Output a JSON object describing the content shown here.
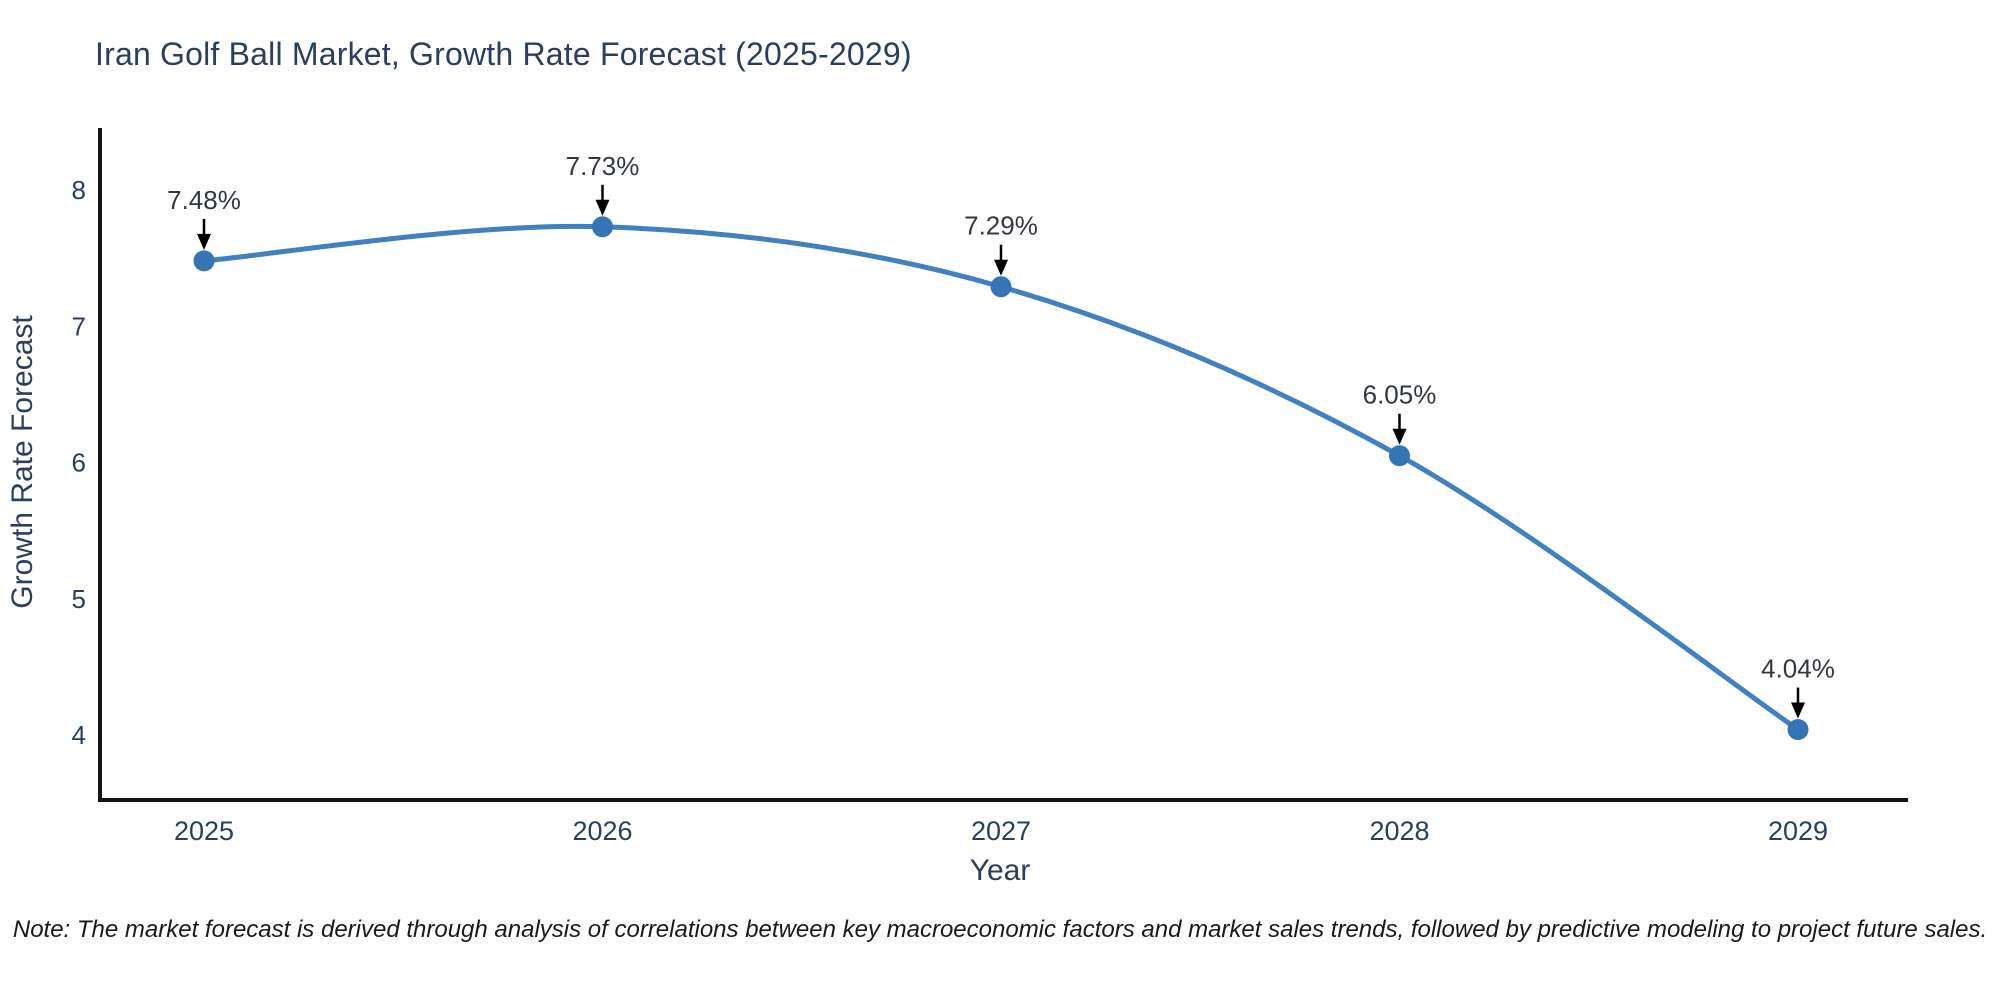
{
  "page": {
    "title": "Iran Golf Ball Market, Growth Rate Forecast (2025-2029)",
    "note": "Note: The market forecast is derived through analysis of correlations between key macroeconomic factors and market sales trends, followed by predictive modeling to project future sales."
  },
  "chart_data": {
    "type": "line",
    "title": "Iran Golf Ball Market, Growth Rate Forecast (2025-2029)",
    "categories": [
      "2025",
      "2026",
      "2027",
      "2028",
      "2029"
    ],
    "series": [
      {
        "name": "Growth Rate Forecast",
        "values": [
          7.48,
          7.73,
          7.29,
          6.05,
          4.04
        ]
      }
    ],
    "point_labels": [
      "7.48%",
      "7.73%",
      "7.29%",
      "6.05%",
      "4.04%"
    ],
    "xlabel": "Year",
    "ylabel": "Growth Rate Forecast",
    "yticks": [
      4,
      5,
      6,
      7,
      8
    ],
    "ylim": [
      3.52,
      8.45
    ],
    "line_shape": "spline",
    "grid": false,
    "legend": "none",
    "line_color": "#4181c1",
    "marker_color": "#3575b5",
    "arrow_color": "#000000",
    "spine_color": "#141414",
    "axis_text_color": "#2a3f5f",
    "annotation_color": "#33383f",
    "background_color": "#ffffff"
  }
}
